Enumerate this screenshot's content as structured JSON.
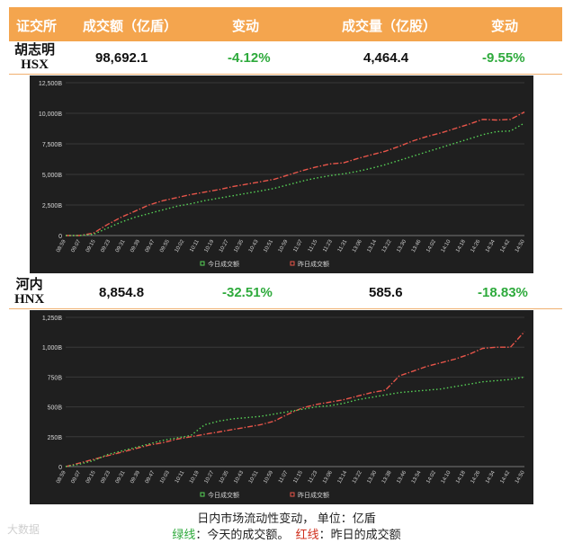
{
  "header": {
    "exchange": "证交所",
    "turnover": "成交额（亿盾）",
    "change1": "变动",
    "volume": "成交量（亿股）",
    "change2": "变动"
  },
  "rows": [
    {
      "name": "胡志明",
      "code": "HSX",
      "turnover": "98,692.1",
      "turnover_change": "-4.12%",
      "volume": "4,464.4",
      "volume_change": "-9.55%"
    },
    {
      "name": "河内",
      "code": "HNX",
      "turnover": "8,854.8",
      "turnover_change": "-32.51%",
      "volume": "585.6",
      "volume_change": "-18.83%"
    }
  ],
  "caption": {
    "line1": "日内市场流动性变动，  单位：亿盾",
    "green_label": "绿线",
    "green_text": "：今天的成交额。",
    "red_label": "红线",
    "red_text": "：昨日的成交额"
  },
  "watermark": "大数据",
  "colors": {
    "header": "#f4a54e",
    "green": "#2eaa3c",
    "red": "#d0301e",
    "chart_bg": "#1f1f1f"
  },
  "chart_data": [
    {
      "type": "line",
      "x": [
        "09:00",
        "09:07",
        "09:15",
        "09:23",
        "09:31",
        "09:39",
        "09:47",
        "09:55",
        "10:03",
        "10:11",
        "10:19",
        "10:27",
        "10:35",
        "10:43",
        "10:51",
        "10:59",
        "11:07",
        "11:15",
        "11:23",
        "11:31",
        "13:06",
        "13:14",
        "13:22",
        "13:30",
        "13:38",
        "13:46",
        "13:54",
        "14:02",
        "14:10",
        "14:18",
        "14:26",
        "14:34",
        "14:42",
        "14:50"
      ],
      "xticks": [
        "08:59",
        "09:07",
        "09:15",
        "09:23",
        "09:31",
        "09:39",
        "09:47",
        "09:55",
        "10:02",
        "10:11",
        "10:19",
        "10:27",
        "10:35",
        "10:43",
        "10:51",
        "10:59",
        "11:07",
        "11:15",
        "11:23",
        "11:31",
        "13:06",
        "13:14",
        "13:22",
        "13:30",
        "13:46",
        "14:02",
        "14:10",
        "14:18",
        "14:26",
        "14:34",
        "14:42",
        "14:50"
      ],
      "yticks": [
        "0",
        "2,500B",
        "5,000B",
        "7,500B",
        "10,000B",
        "12,500B"
      ],
      "ylim": [
        0,
        12500
      ],
      "series": [
        {
          "name": "今日成交额",
          "color": "#57d357",
          "values": [
            0,
            0,
            100,
            600,
            1100,
            1500,
            1800,
            2100,
            2400,
            2600,
            2850,
            3050,
            3250,
            3450,
            3650,
            3850,
            4150,
            4450,
            4700,
            4900,
            5050,
            5250,
            5500,
            5800,
            6150,
            6500,
            6850,
            7200,
            7550,
            7900,
            8250,
            8500,
            8550,
            9200
          ]
        },
        {
          "name": "昨日成交额",
          "color": "#e8554a",
          "values": [
            0,
            0,
            200,
            900,
            1500,
            2000,
            2500,
            2850,
            3100,
            3350,
            3550,
            3750,
            4000,
            4200,
            4400,
            4600,
            4950,
            5300,
            5600,
            5850,
            5950,
            6300,
            6600,
            6900,
            7300,
            7750,
            8100,
            8400,
            8750,
            9100,
            9500,
            9450,
            9500,
            10100
          ]
        }
      ]
    },
    {
      "type": "line",
      "x": [
        "09:00",
        "09:07",
        "09:15",
        "09:23",
        "09:31",
        "09:39",
        "09:47",
        "09:55",
        "10:03",
        "10:11",
        "10:19",
        "10:27",
        "10:35",
        "10:43",
        "10:51",
        "10:59",
        "11:07",
        "11:15",
        "11:23",
        "11:31",
        "13:06",
        "13:14",
        "13:22",
        "13:30",
        "13:38",
        "13:46",
        "13:54",
        "14:02",
        "14:10",
        "14:18",
        "14:26",
        "14:34",
        "14:42",
        "14:50"
      ],
      "xticks": [
        "08:59",
        "09:07",
        "09:15",
        "09:23",
        "09:31",
        "09:39",
        "09:47",
        "10:03",
        "10:11",
        "10:19",
        "10:27",
        "10:35",
        "10:43",
        "10:51",
        "10:59",
        "11:07",
        "11:15",
        "11:23",
        "13:06",
        "13:14",
        "13:22",
        "13:30",
        "13:38",
        "13:46",
        "13:54",
        "14:02",
        "14:10",
        "14:18",
        "14:26",
        "14:34",
        "14:42",
        "14:50"
      ],
      "yticks": [
        "0",
        "250B",
        "500B",
        "750B",
        "1,000B",
        "1,250B"
      ],
      "ylim": [
        0,
        1250
      ],
      "series": [
        {
          "name": "今日成交额",
          "color": "#57d357",
          "values": [
            0,
            20,
            50,
            100,
            130,
            160,
            190,
            220,
            240,
            260,
            350,
            380,
            400,
            410,
            420,
            440,
            460,
            480,
            500,
            510,
            530,
            560,
            580,
            600,
            620,
            630,
            640,
            650,
            670,
            690,
            710,
            720,
            730,
            750
          ]
        },
        {
          "name": "昨日成交额",
          "color": "#e8554a",
          "values": [
            0,
            30,
            60,
            90,
            120,
            150,
            180,
            200,
            230,
            250,
            270,
            290,
            310,
            330,
            350,
            380,
            440,
            490,
            520,
            540,
            560,
            590,
            620,
            640,
            760,
            800,
            840,
            870,
            900,
            940,
            990,
            1000,
            1000,
            1130
          ]
        }
      ]
    }
  ]
}
